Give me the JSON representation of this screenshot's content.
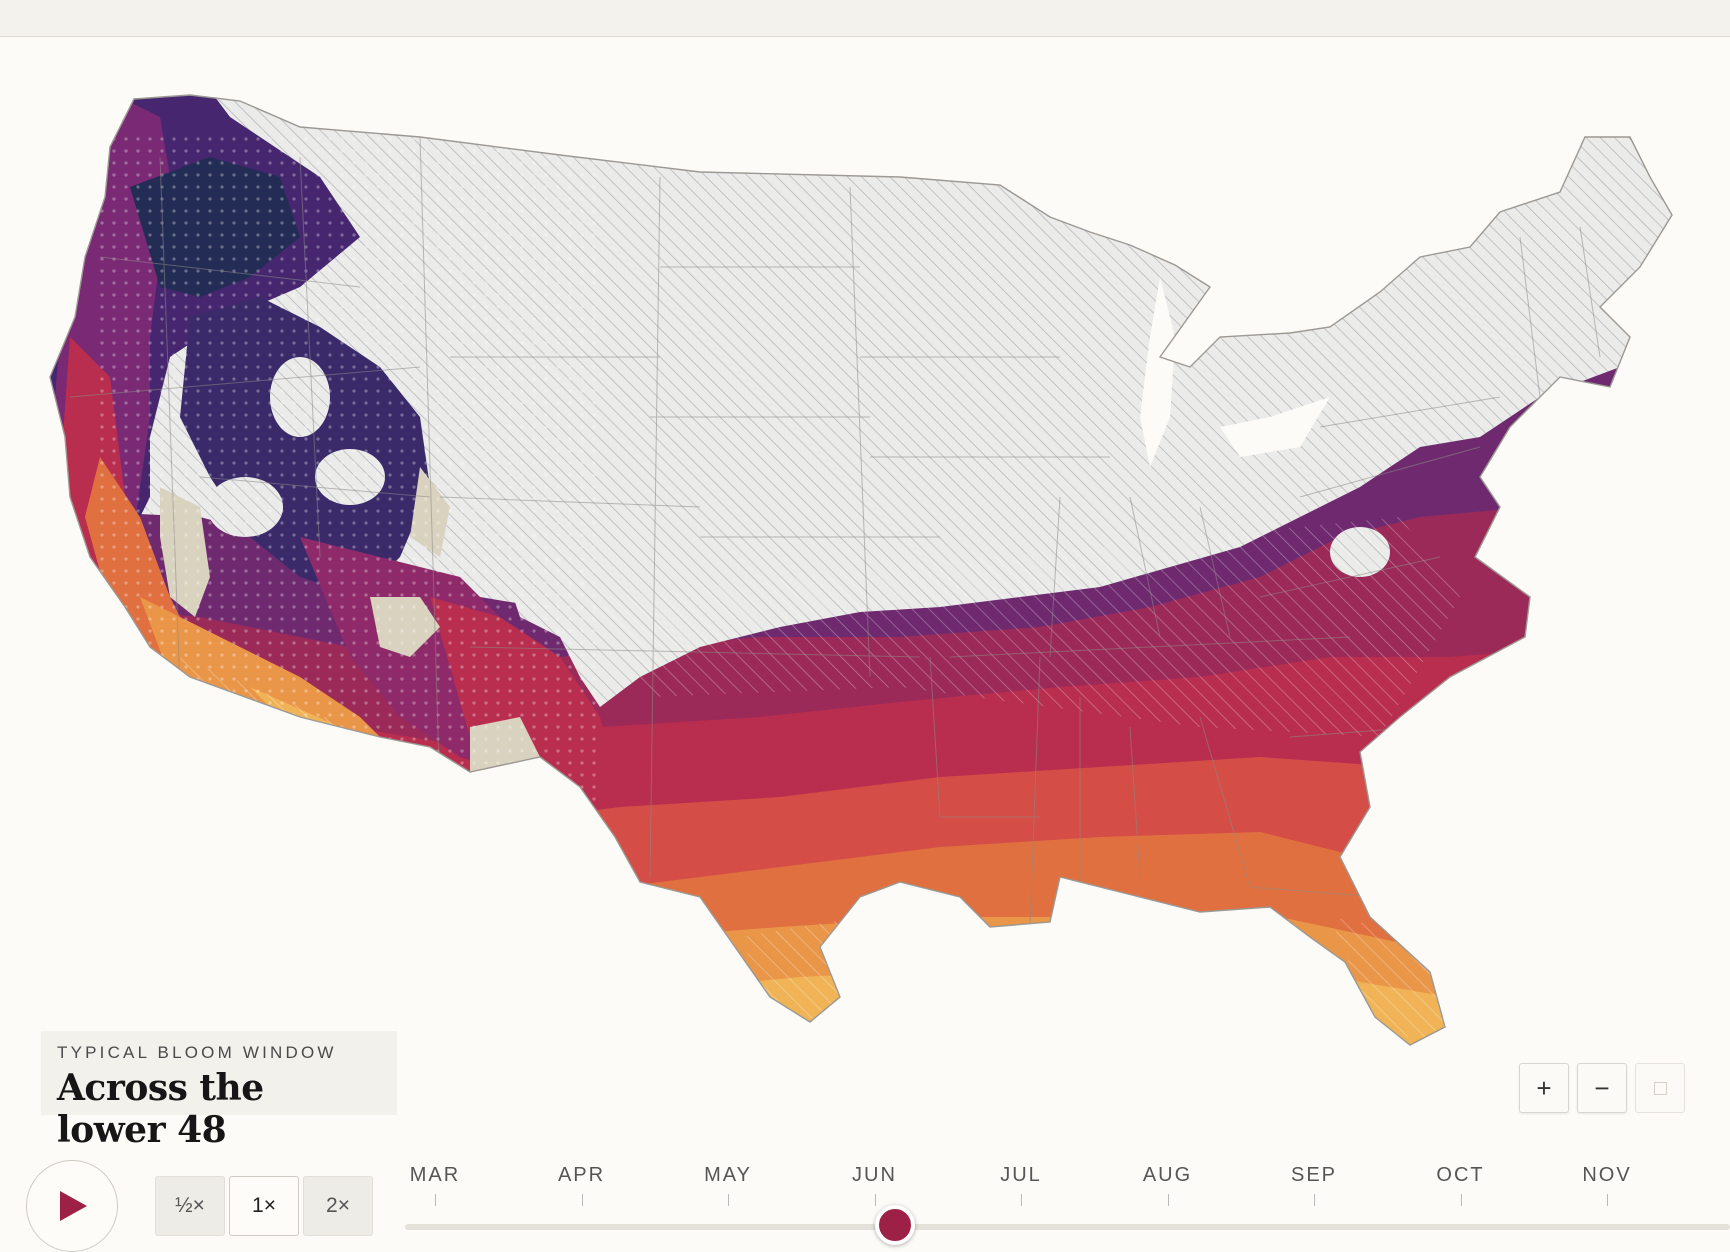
{
  "map": {
    "region": "Contiguous United States",
    "legend_colors": {
      "earliest": "#f0b456",
      "early": "#e07040",
      "mid": "#b92e4f",
      "late": "#7a2a74",
      "latest": "#46276f",
      "very_late": "#232c55",
      "no_data": "#ebebea",
      "barren": "#d8d2be"
    },
    "hatch_color": "#b7b8bd"
  },
  "caption": {
    "eyebrow": "TYPICAL BLOOM WINDOW",
    "title": "Across the lower 48"
  },
  "zoom": {
    "in_label": "+",
    "out_label": "−"
  },
  "playback": {
    "speeds": [
      "½×",
      "1×",
      "2×"
    ],
    "active_speed": "1×"
  },
  "timeline": {
    "months": [
      "MAR",
      "APR",
      "MAY",
      "JUN",
      "JUL",
      "AUG",
      "SEP",
      "OCT",
      "NOV"
    ],
    "current_position": 0.37
  }
}
